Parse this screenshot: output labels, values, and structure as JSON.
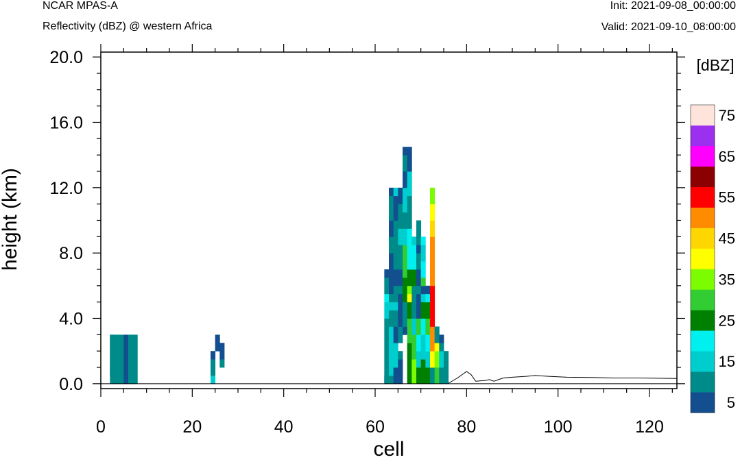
{
  "header": {
    "model": "NCAR MPAS-A",
    "subtitle": "Reflectivity (dBZ) @ western Africa",
    "init": "Init: 2021-09-08_00:00:00",
    "valid": "Valid: 2021-09-10_08:00:00"
  },
  "chart_data": {
    "type": "heatmap",
    "title": "Reflectivity (dBZ) @ western Africa",
    "xlabel": "cell",
    "ylabel": "height (km)",
    "xlim": [
      0,
      126
    ],
    "ylim": [
      -0.3,
      20.3
    ],
    "xticks": [
      0,
      20,
      40,
      60,
      80,
      100,
      120
    ],
    "xtick_labels": [
      "0",
      "20",
      "40",
      "60",
      "80",
      "100",
      "120"
    ],
    "yticks": [
      0,
      4,
      8,
      12,
      16,
      20
    ],
    "ytick_labels": [
      "0.0",
      "4.0",
      "8.0",
      "12.0",
      "16.0",
      "20.0"
    ],
    "colorbar": {
      "label": "[dBZ]",
      "levels": [
        5,
        10,
        15,
        20,
        25,
        30,
        35,
        40,
        45,
        50,
        55,
        60,
        65,
        70,
        75
      ],
      "tick_labels": [
        "5",
        "15",
        "25",
        "35",
        "45",
        "55",
        "65",
        "75"
      ],
      "colors": [
        "#134f8f",
        "#008b8b",
        "#00cdcd",
        "#00f0f0",
        "#008000",
        "#32cd32",
        "#7cfc00",
        "#ffff00",
        "#ffd700",
        "#ff8c00",
        "#ff0000",
        "#8b0000",
        "#ff00ff",
        "#9b30ee",
        "#ffe4dc"
      ]
    },
    "terrain_height_km": [
      [
        76,
        0.02
      ],
      [
        78,
        0.35
      ],
      [
        80,
        0.75
      ],
      [
        81,
        0.55
      ],
      [
        82,
        0.15
      ],
      [
        84,
        0.2
      ],
      [
        85,
        0.25
      ],
      [
        86,
        0.15
      ],
      [
        88,
        0.35
      ],
      [
        90,
        0.4
      ],
      [
        93,
        0.45
      ],
      [
        95,
        0.5
      ],
      [
        98,
        0.45
      ],
      [
        102,
        0.4
      ],
      [
        107,
        0.38
      ],
      [
        112,
        0.35
      ],
      [
        118,
        0.35
      ],
      [
        126,
        0.32
      ]
    ],
    "cell_width": 1,
    "layer_height_km": 0.5,
    "columns": [
      {
        "x": 2.5,
        "cells": [
          [
            0,
            1,
            10
          ],
          [
            1,
            5,
            5
          ],
          [
            1,
            5,
            10
          ]
        ]
      },
      {
        "x": 3.5,
        "cells": [
          [
            0,
            1,
            10
          ],
          [
            1,
            1,
            10
          ],
          [
            2,
            2,
            5
          ],
          [
            2,
            3,
            10
          ],
          [
            3,
            5,
            10
          ]
        ]
      },
      {
        "x": 4.5,
        "cells": [
          [
            0,
            5,
            10
          ]
        ]
      },
      {
        "x": 5.5,
        "cells": [
          [
            0,
            5,
            5
          ]
        ]
      },
      {
        "x": 6.5,
        "cells": [
          [
            0,
            5,
            10
          ]
        ]
      },
      {
        "x": 7.5,
        "cells": [
          [
            0,
            5,
            10
          ]
        ]
      },
      {
        "x": 24.5,
        "cells": [
          [
            0,
            0,
            15
          ],
          [
            1,
            1,
            10
          ],
          [
            2,
            2,
            10
          ],
          [
            3,
            3,
            5
          ]
        ]
      },
      {
        "x": 25.5,
        "cells": [
          [
            4,
            4,
            5
          ],
          [
            5,
            5,
            5
          ]
        ]
      },
      {
        "x": 26.5,
        "cells": [
          [
            2,
            2,
            10
          ],
          [
            3,
            3,
            5
          ],
          [
            4,
            4,
            5
          ]
        ]
      },
      {
        "x": 62.5,
        "cells": [
          [
            0,
            0,
            5
          ],
          [
            0,
            7,
            10
          ],
          [
            8,
            9,
            15
          ],
          [
            10,
            10,
            20
          ],
          [
            11,
            12,
            10
          ],
          [
            13,
            13,
            5
          ]
        ]
      },
      {
        "x": 63.5,
        "cells": [
          [
            0,
            0,
            10
          ],
          [
            1,
            6,
            15
          ],
          [
            7,
            8,
            10
          ],
          [
            9,
            9,
            15
          ],
          [
            10,
            10,
            10
          ],
          [
            11,
            15,
            5
          ],
          [
            16,
            17,
            10
          ],
          [
            18,
            19,
            5
          ],
          [
            20,
            22,
            10
          ],
          [
            23,
            23,
            5
          ]
        ]
      },
      {
        "x": 64.5,
        "cells": [
          [
            0,
            1,
            5
          ],
          [
            2,
            4,
            15
          ],
          [
            5,
            6,
            5
          ],
          [
            7,
            8,
            10
          ],
          [
            9,
            9,
            15
          ],
          [
            10,
            11,
            10
          ],
          [
            12,
            13,
            5
          ],
          [
            14,
            19,
            10
          ],
          [
            20,
            22,
            5
          ],
          [
            23,
            23,
            15
          ]
        ]
      },
      {
        "x": 65.5,
        "cells": [
          [
            0,
            2,
            5
          ],
          [
            3,
            3,
            10
          ],
          [
            5,
            6,
            10
          ],
          [
            7,
            8,
            5
          ],
          [
            9,
            10,
            5
          ],
          [
            11,
            11,
            10
          ],
          [
            12,
            13,
            5
          ],
          [
            14,
            16,
            10
          ],
          [
            17,
            18,
            15
          ],
          [
            19,
            21,
            10
          ],
          [
            22,
            23,
            5
          ]
        ]
      },
      {
        "x": 66.5,
        "cells": [
          [
            6,
            6,
            5
          ],
          [
            7,
            9,
            10
          ],
          [
            10,
            10,
            25
          ],
          [
            11,
            11,
            25
          ],
          [
            12,
            12,
            25
          ],
          [
            13,
            14,
            30
          ],
          [
            15,
            16,
            30
          ],
          [
            17,
            18,
            15
          ],
          [
            19,
            20,
            10
          ],
          [
            21,
            22,
            15
          ],
          [
            23,
            23,
            15
          ],
          [
            24,
            25,
            5
          ],
          [
            26,
            26,
            10
          ],
          [
            27,
            27,
            10
          ],
          [
            28,
            28,
            5
          ]
        ]
      },
      {
        "x": 67.5,
        "cells": [
          [
            0,
            4,
            25
          ],
          [
            5,
            7,
            30
          ],
          [
            8,
            9,
            25
          ],
          [
            10,
            10,
            40
          ],
          [
            11,
            11,
            35
          ],
          [
            12,
            13,
            25
          ],
          [
            14,
            16,
            20
          ],
          [
            17,
            18,
            20
          ],
          [
            19,
            22,
            10
          ],
          [
            23,
            25,
            15
          ],
          [
            26,
            26,
            5
          ],
          [
            27,
            27,
            5
          ],
          [
            28,
            28,
            5
          ]
        ]
      },
      {
        "x": 68.5,
        "cells": [
          [
            0,
            2,
            35
          ],
          [
            3,
            5,
            30
          ],
          [
            6,
            7,
            15
          ],
          [
            8,
            11,
            10
          ],
          [
            12,
            13,
            25
          ],
          [
            14,
            15,
            20
          ],
          [
            16,
            16,
            20
          ],
          [
            17,
            17,
            15
          ]
        ]
      },
      {
        "x": 69.5,
        "cells": [
          [
            0,
            1,
            25
          ],
          [
            2,
            3,
            15
          ],
          [
            4,
            5,
            20
          ],
          [
            6,
            7,
            30
          ],
          [
            8,
            10,
            5
          ],
          [
            11,
            11,
            10
          ],
          [
            12,
            13,
            5
          ],
          [
            14,
            15,
            10
          ],
          [
            16,
            16,
            5
          ],
          [
            17,
            19,
            10
          ]
        ]
      },
      {
        "x": 70.5,
        "cells": [
          [
            0,
            2,
            25
          ],
          [
            3,
            5,
            15
          ],
          [
            6,
            7,
            20
          ],
          [
            8,
            9,
            25
          ],
          [
            10,
            10,
            15
          ],
          [
            11,
            11,
            5
          ],
          [
            12,
            12,
            30
          ],
          [
            13,
            14,
            20
          ],
          [
            15,
            16,
            15
          ],
          [
            17,
            17,
            20
          ]
        ]
      },
      {
        "x": 71.5,
        "cells": [
          [
            0,
            1,
            25
          ],
          [
            2,
            3,
            15
          ],
          [
            4,
            5,
            20
          ],
          [
            6,
            7,
            30
          ],
          [
            8,
            9,
            25
          ],
          [
            10,
            10,
            20
          ],
          [
            11,
            11,
            5
          ]
        ]
      },
      {
        "x": 72.5,
        "cells": [
          [
            0,
            1,
            10
          ],
          [
            2,
            3,
            40
          ],
          [
            4,
            5,
            50
          ],
          [
            6,
            6,
            50
          ],
          [
            7,
            8,
            55
          ],
          [
            9,
            11,
            55
          ],
          [
            12,
            17,
            50
          ],
          [
            18,
            19,
            45
          ],
          [
            20,
            21,
            40
          ],
          [
            22,
            23,
            35
          ]
        ]
      },
      {
        "x": 73.5,
        "cells": [
          [
            0,
            1,
            30
          ],
          [
            2,
            3,
            35
          ],
          [
            4,
            4,
            40
          ],
          [
            5,
            6,
            10
          ]
        ]
      },
      {
        "x": 74.5,
        "cells": [
          [
            0,
            1,
            10
          ],
          [
            2,
            3,
            15
          ],
          [
            4,
            4,
            10
          ],
          [
            5,
            5,
            5
          ]
        ]
      },
      {
        "x": 75.5,
        "cells": [
          [
            0,
            0,
            10
          ],
          [
            1,
            1,
            10
          ],
          [
            2,
            3,
            10
          ]
        ]
      }
    ]
  }
}
